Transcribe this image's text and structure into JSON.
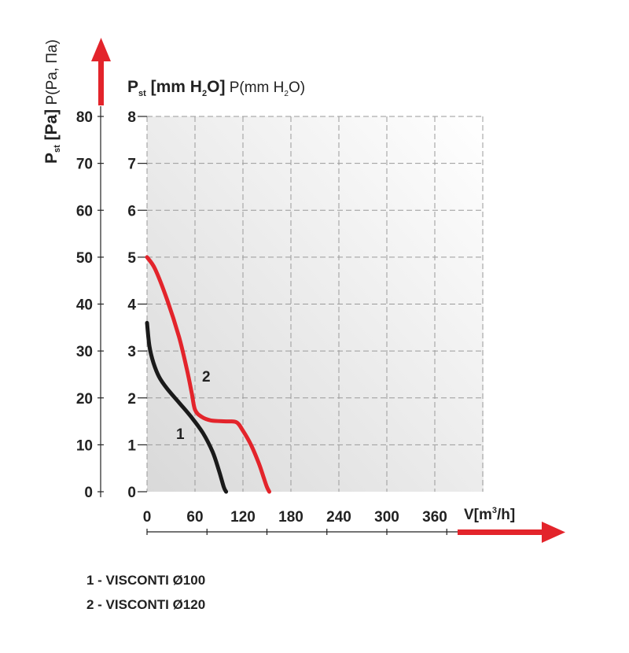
{
  "chart_data": {
    "type": "line",
    "xlabel": "V[m³/h]",
    "x_ticks": [
      0,
      60,
      120,
      180,
      240,
      300,
      360
    ],
    "xlim": [
      0,
      420
    ],
    "ylabel_left": "Pst [Pa] P(Pa, Па)",
    "ylabel_inner": "Pst [mm H2O] P(mm H2O)",
    "y_ticks_pa": [
      0,
      10,
      20,
      30,
      40,
      50,
      60,
      70,
      80
    ],
    "y_ticks_mm": [
      0,
      1,
      2,
      3,
      4,
      5,
      6,
      7,
      8
    ],
    "ylim_mm": [
      0,
      8
    ],
    "ylim_pa": [
      0,
      80
    ],
    "grid": true,
    "series": [
      {
        "name": "1",
        "legend": "1 - VISCONTI Ø100",
        "color": "#1a1a1a",
        "x": [
          0,
          3,
          8,
          15,
          25,
          40,
          55,
          70,
          82,
          90,
          96,
          99
        ],
        "y": [
          3.6,
          3.1,
          2.75,
          2.45,
          2.2,
          1.9,
          1.6,
          1.25,
          0.85,
          0.45,
          0.1,
          0
        ]
      },
      {
        "name": "2",
        "legend": "2 - VISCONTI Ø120",
        "color": "#e3242b",
        "x": [
          0,
          10,
          25,
          40,
          50,
          56,
          60,
          68,
          80,
          100,
          112,
          120,
          130,
          140,
          146,
          150,
          153
        ],
        "y": [
          5.0,
          4.75,
          4.1,
          3.3,
          2.6,
          2.1,
          1.75,
          1.6,
          1.52,
          1.5,
          1.48,
          1.3,
          1.0,
          0.6,
          0.3,
          0.1,
          0
        ]
      }
    ]
  },
  "labels": {
    "pa_main": "P",
    "pa_sub": "st",
    "pa_bold": " [Pa]",
    "pa_rest": " P(Pa, Па)",
    "mm_main": "P",
    "mm_sub": "st",
    "mm_bold1": " [mm H",
    "mm_bold2": "O]",
    "mm_reg1": " P(mm H",
    "mm_reg2": "O)",
    "two": "2",
    "x_main": "V[m",
    "x_sup": "3",
    "x_end": "/h]"
  },
  "legend": {
    "item1": "1 - VISCONTI Ø100",
    "item2": "2 - VISCONTI Ø120"
  },
  "colors": {
    "arrow": "#e3242b",
    "grid": "#9a9a9a",
    "axis": "#222222"
  }
}
